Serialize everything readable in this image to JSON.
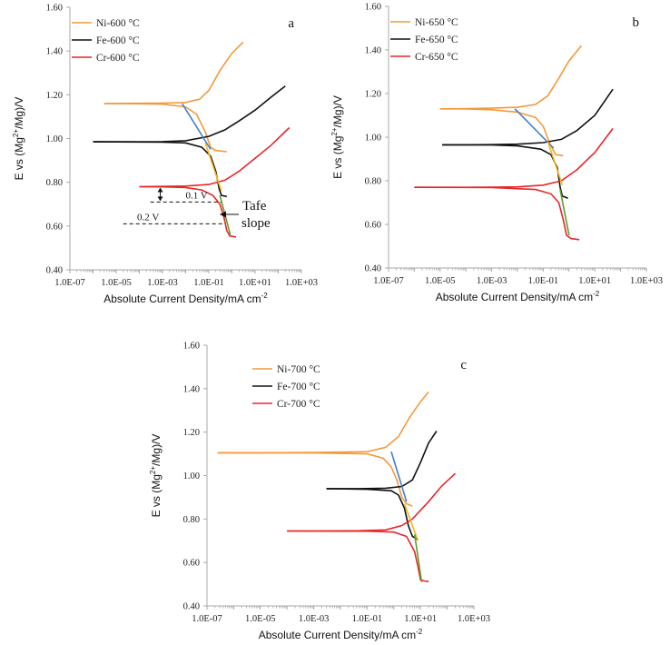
{
  "colors": {
    "Ni": "#f4993b",
    "Fe": "#111111",
    "Cr": "#e8262a",
    "tafel_blue": "#3f7fc9",
    "tafel_yellow": "#f1b81c",
    "tafel_green": "#5aa02c",
    "axis": "#aaaaaa"
  },
  "chart_data": [
    {
      "type": "line",
      "panel_label": "a",
      "xlabel": "Absolute Current Density/mA cm",
      "xlabel_sup": "-2",
      "ylabel_pre": "E vs (Mg",
      "ylabel_sup": "2+",
      "ylabel_post": "/Mg)/V",
      "xscale": "log",
      "xlim": [
        1e-07,
        1000
      ],
      "ylim": [
        0.4,
        1.6
      ],
      "xticks": [
        "1.0E-07",
        "1.0E-05",
        "1.0E-03",
        "1.0E-01",
        "1.0E+01",
        "1.0E+03"
      ],
      "yticks": [
        "0.40",
        "0.60",
        "0.80",
        "1.00",
        "1.20",
        "1.40",
        "1.60"
      ],
      "legend": [
        "Ni-600 °C",
        "Fe-600 °C",
        "Cr-600 °C"
      ],
      "series": [
        {
          "name": "Ni-600 °C",
          "key": "Ni",
          "anodic": [
            [
              3e-06,
              1.16
            ],
            [
              0.0001,
              1.161
            ],
            [
              0.001,
              1.162
            ],
            [
              0.01,
              1.165
            ],
            [
              0.04,
              1.18
            ],
            [
              0.1,
              1.22
            ],
            [
              0.3,
              1.31
            ],
            [
              1,
              1.39
            ],
            [
              3,
              1.44
            ]
          ],
          "cathodic": [
            [
              3e-06,
              1.16
            ],
            [
              0.0001,
              1.159
            ],
            [
              0.001,
              1.157
            ],
            [
              0.01,
              1.145
            ],
            [
              0.03,
              1.11
            ],
            [
              0.07,
              1.03
            ],
            [
              0.12,
              0.96
            ],
            [
              0.2,
              0.945
            ],
            [
              0.6,
              0.94
            ]
          ]
        },
        {
          "name": "Fe-600 °C",
          "key": "Fe",
          "anodic": [
            [
              1e-06,
              0.985
            ],
            [
              0.0001,
              0.985
            ],
            [
              0.001,
              0.986
            ],
            [
              0.01,
              0.99
            ],
            [
              0.1,
              1.01
            ],
            [
              0.5,
              1.04
            ],
            [
              2,
              1.08
            ],
            [
              10,
              1.13
            ],
            [
              50,
              1.19
            ],
            [
              200,
              1.24
            ]
          ],
          "cathodic": [
            [
              1e-06,
              0.985
            ],
            [
              0.001,
              0.984
            ],
            [
              0.01,
              0.98
            ],
            [
              0.05,
              0.96
            ],
            [
              0.12,
              0.92
            ],
            [
              0.2,
              0.85
            ],
            [
              0.28,
              0.77
            ],
            [
              0.35,
              0.74
            ],
            [
              0.6,
              0.735
            ]
          ]
        },
        {
          "name": "Cr-600 °C",
          "key": "Cr",
          "anodic": [
            [
              0.0001,
              0.78
            ],
            [
              0.001,
              0.781
            ],
            [
              0.01,
              0.783
            ],
            [
              0.1,
              0.79
            ],
            [
              0.5,
              0.81
            ],
            [
              2,
              0.85
            ],
            [
              10,
              0.91
            ],
            [
              50,
              0.97
            ],
            [
              300,
              1.05
            ]
          ],
          "cathodic": [
            [
              0.0001,
              0.78
            ],
            [
              0.001,
              0.779
            ],
            [
              0.01,
              0.776
            ],
            [
              0.05,
              0.765
            ],
            [
              0.15,
              0.74
            ],
            [
              0.3,
              0.7
            ],
            [
              0.45,
              0.64
            ],
            [
              0.6,
              0.58
            ],
            [
              0.8,
              0.555
            ],
            [
              1.5,
              0.55
            ]
          ]
        }
      ],
      "tafel": [
        {
          "key": "tafel_blue",
          "points": [
            [
              0.007,
              1.16
            ],
            [
              0.12,
              0.95
            ]
          ]
        },
        {
          "key": "tafel_yellow",
          "points": [
            [
              0.07,
              0.98
            ],
            [
              0.35,
              0.76
            ]
          ]
        },
        {
          "key": "tafel_green",
          "points": [
            [
              0.3,
              0.74
            ],
            [
              0.85,
              0.56
            ]
          ]
        }
      ],
      "annotations": {
        "v1": "0.1 V",
        "v2": "0.2 V",
        "tafel1": "Tafe",
        "tafel2": "slope"
      }
    },
    {
      "type": "line",
      "panel_label": "b",
      "xlabel": "Absolute Current Density/mA cm",
      "xlabel_sup": "-2",
      "ylabel_pre": "E vs (Mg",
      "ylabel_sup": "2+",
      "ylabel_post": "/Mg)/V",
      "xscale": "log",
      "xlim": [
        1e-07,
        1000
      ],
      "ylim": [
        0.4,
        1.6
      ],
      "xticks": [
        "1.0E-07",
        "1.0E-05",
        "1.0E-03",
        "1.0E-01",
        "1.0E+01",
        "1.0E+03"
      ],
      "yticks": [
        "0.40",
        "0.60",
        "0.80",
        "1.00",
        "1.20",
        "1.40",
        "1.60"
      ],
      "legend": [
        "Ni-650 °C",
        "Fe-650 °C",
        "Cr-650 °C"
      ],
      "series": [
        {
          "name": "Ni-650 °C",
          "key": "Ni",
          "anodic": [
            [
              1e-05,
              1.13
            ],
            [
              0.0001,
              1.131
            ],
            [
              0.001,
              1.133
            ],
            [
              0.01,
              1.137
            ],
            [
              0.05,
              1.15
            ],
            [
              0.15,
              1.19
            ],
            [
              0.4,
              1.27
            ],
            [
              1,
              1.35
            ],
            [
              3,
              1.42
            ]
          ],
          "cathodic": [
            [
              1e-05,
              1.13
            ],
            [
              0.0001,
              1.129
            ],
            [
              0.001,
              1.126
            ],
            [
              0.01,
              1.115
            ],
            [
              0.05,
              1.09
            ],
            [
              0.1,
              1.05
            ],
            [
              0.18,
              0.97
            ],
            [
              0.3,
              0.92
            ],
            [
              0.6,
              0.915
            ]
          ]
        },
        {
          "name": "Fe-650 °C",
          "key": "Fe",
          "anodic": [
            [
              1.2e-05,
              0.965
            ],
            [
              0.0001,
              0.965
            ],
            [
              0.001,
              0.966
            ],
            [
              0.01,
              0.968
            ],
            [
              0.1,
              0.975
            ],
            [
              0.5,
              0.99
            ],
            [
              2,
              1.03
            ],
            [
              10,
              1.1
            ],
            [
              50,
              1.22
            ]
          ],
          "cathodic": [
            [
              1.2e-05,
              0.965
            ],
            [
              0.001,
              0.964
            ],
            [
              0.01,
              0.96
            ],
            [
              0.08,
              0.945
            ],
            [
              0.2,
              0.92
            ],
            [
              0.35,
              0.86
            ],
            [
              0.45,
              0.77
            ],
            [
              0.55,
              0.73
            ],
            [
              0.9,
              0.72
            ]
          ]
        },
        {
          "name": "Cr-650 °C",
          "key": "Cr",
          "anodic": [
            [
              1e-06,
              0.77
            ],
            [
              0.0001,
              0.77
            ],
            [
              0.001,
              0.771
            ],
            [
              0.01,
              0.772
            ],
            [
              0.1,
              0.78
            ],
            [
              0.5,
              0.8
            ],
            [
              2,
              0.85
            ],
            [
              10,
              0.93
            ],
            [
              50,
              1.04
            ]
          ],
          "cathodic": [
            [
              1e-06,
              0.77
            ],
            [
              0.001,
              0.769
            ],
            [
              0.05,
              0.76
            ],
            [
              0.2,
              0.74
            ],
            [
              0.4,
              0.7
            ],
            [
              0.6,
              0.62
            ],
            [
              0.8,
              0.55
            ],
            [
              1.2,
              0.535
            ],
            [
              2.5,
              0.53
            ]
          ]
        }
      ],
      "tafel": [
        {
          "key": "tafel_blue",
          "points": [
            [
              0.008,
              1.13
            ],
            [
              0.25,
              0.95
            ]
          ]
        },
        {
          "key": "tafel_yellow",
          "points": [
            [
              0.15,
              0.98
            ],
            [
              0.55,
              0.78
            ]
          ]
        },
        {
          "key": "tafel_green",
          "points": [
            [
              0.45,
              0.76
            ],
            [
              1.0,
              0.55
            ]
          ]
        }
      ]
    },
    {
      "type": "line",
      "panel_label": "c",
      "xlabel": "Absolute Current Density/mA cm",
      "xlabel_sup": "-2",
      "ylabel_pre": "E vs (Mg",
      "ylabel_sup": "2+",
      "ylabel_post": "/Mg)/V",
      "xscale": "log",
      "xlim": [
        1e-07,
        1000
      ],
      "ylim": [
        0.4,
        1.6
      ],
      "xticks": [
        "1.0E-07",
        "1.0E-05",
        "1.0E-03",
        "1.0E-01",
        "1.0E+01",
        "1.0E+03"
      ],
      "yticks": [
        "0.40",
        "0.60",
        "0.80",
        "1.00",
        "1.20",
        "1.40",
        "1.60"
      ],
      "legend": [
        "Ni-700 °C",
        "Fe-700 °C",
        "Cr-700 °C"
      ],
      "series": [
        {
          "name": "Ni-700 °C",
          "key": "Ni",
          "anodic": [
            [
              2.5e-07,
              1.105
            ],
            [
              1e-05,
              1.105
            ],
            [
              0.001,
              1.106
            ],
            [
              0.1,
              1.11
            ],
            [
              0.5,
              1.13
            ],
            [
              1.5,
              1.18
            ],
            [
              4,
              1.27
            ],
            [
              10,
              1.34
            ],
            [
              20,
              1.385
            ]
          ],
          "cathodic": [
            [
              2.5e-07,
              1.105
            ],
            [
              0.001,
              1.104
            ],
            [
              0.1,
              1.1
            ],
            [
              0.4,
              1.08
            ],
            [
              0.8,
              1.04
            ],
            [
              1.3,
              0.98
            ],
            [
              2,
              0.9
            ],
            [
              3,
              0.87
            ],
            [
              5,
              0.86
            ]
          ]
        },
        {
          "name": "Fe-700 °C",
          "key": "Fe",
          "anodic": [
            [
              0.003,
              0.94
            ],
            [
              0.05,
              0.94
            ],
            [
              0.5,
              0.942
            ],
            [
              2,
              0.95
            ],
            [
              5,
              0.98
            ],
            [
              10,
              1.06
            ],
            [
              20,
              1.15
            ],
            [
              40,
              1.205
            ]
          ],
          "cathodic": [
            [
              0.003,
              0.94
            ],
            [
              0.1,
              0.937
            ],
            [
              0.8,
              0.93
            ],
            [
              1.5,
              0.91
            ],
            [
              2.5,
              0.85
            ],
            [
              3.5,
              0.77
            ],
            [
              5,
              0.72
            ],
            [
              8,
              0.705
            ]
          ]
        },
        {
          "name": "Cr-700 °C",
          "key": "Cr",
          "anodic": [
            [
              0.0001,
              0.745
            ],
            [
              0.001,
              0.745
            ],
            [
              0.05,
              0.746
            ],
            [
              0.5,
              0.75
            ],
            [
              2,
              0.77
            ],
            [
              5,
              0.8
            ],
            [
              20,
              0.88
            ],
            [
              60,
              0.95
            ],
            [
              200,
              1.01
            ]
          ],
          "cathodic": [
            [
              0.0001,
              0.745
            ],
            [
              0.1,
              0.744
            ],
            [
              1,
              0.74
            ],
            [
              3,
              0.72
            ],
            [
              6,
              0.65
            ],
            [
              8,
              0.58
            ],
            [
              10,
              0.52
            ],
            [
              14,
              0.515
            ],
            [
              20,
              0.512
            ]
          ]
        }
      ],
      "tafel": [
        {
          "key": "tafel_blue",
          "points": [
            [
              0.8,
              1.11
            ],
            [
              3,
              0.88
            ]
          ]
        },
        {
          "key": "tafel_yellow",
          "points": [
            [
              2.5,
              0.87
            ],
            [
              8,
              0.7
            ]
          ]
        },
        {
          "key": "tafel_green",
          "points": [
            [
              6,
              0.73
            ],
            [
              11,
              0.51
            ]
          ]
        }
      ]
    }
  ]
}
